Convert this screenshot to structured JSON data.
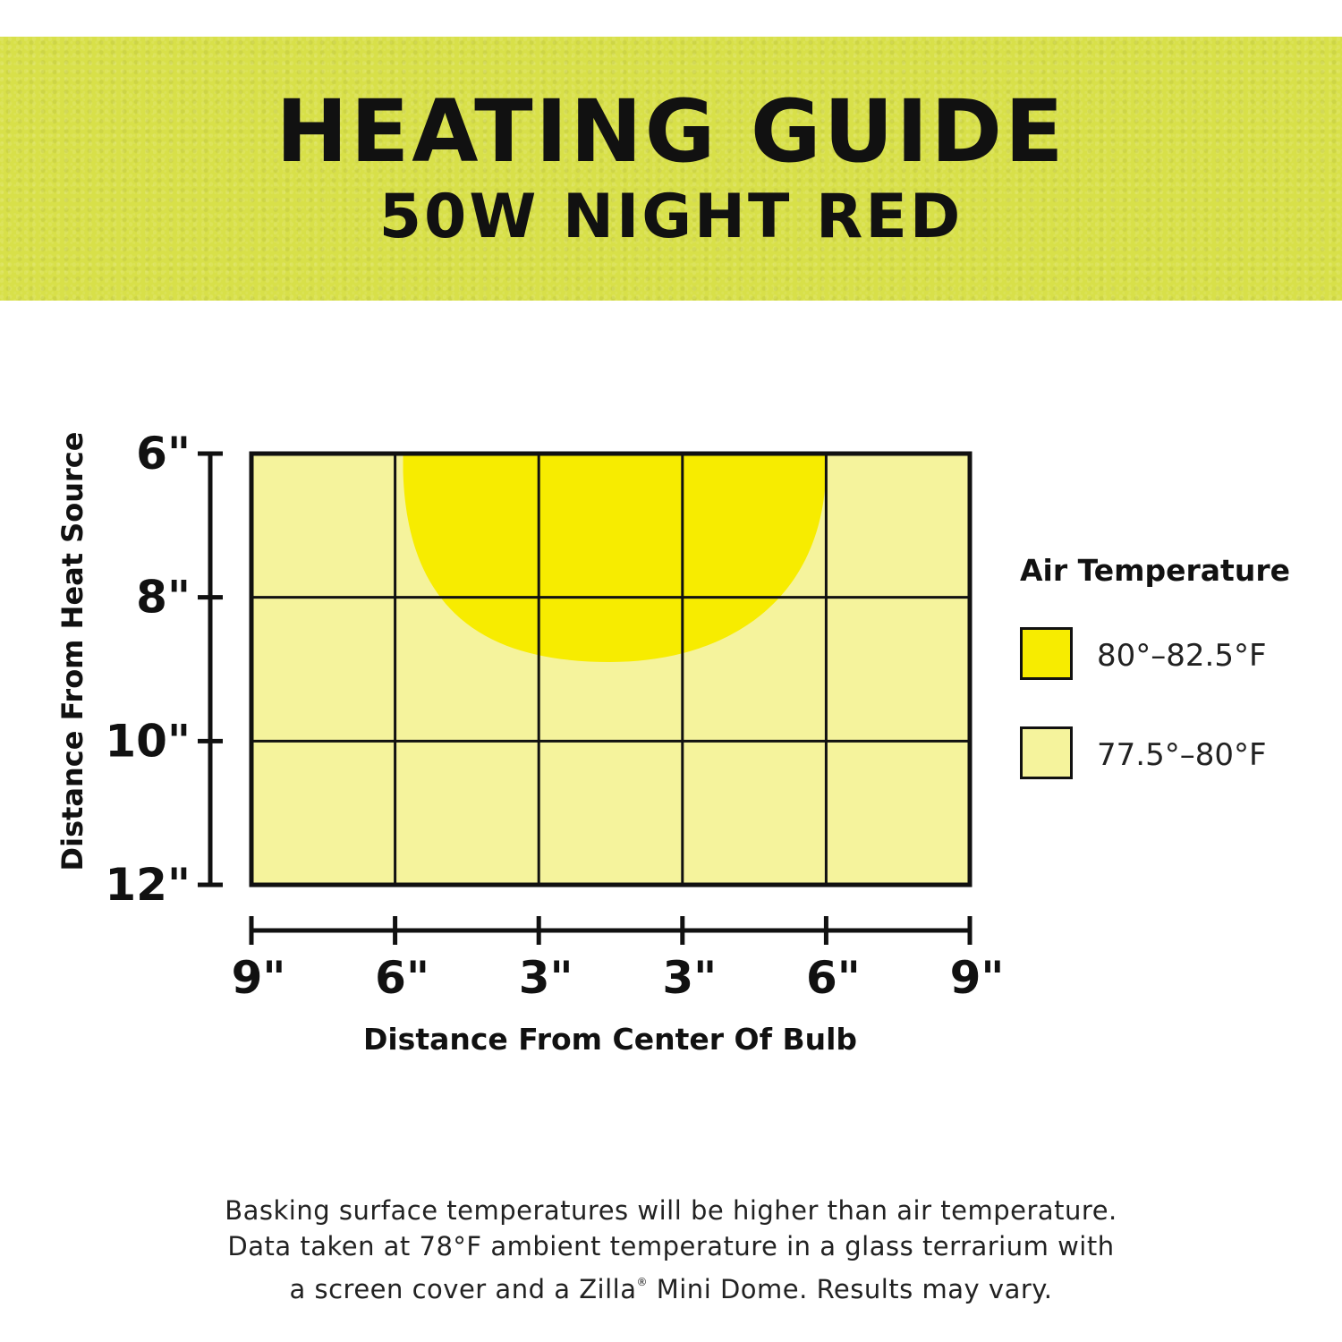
{
  "header": {
    "title": "HEATING GUIDE",
    "subtitle": "50W NIGHT RED",
    "banner_color": "#d8e049"
  },
  "chart_data": {
    "type": "heatmap",
    "ylabel": "Distance From Heat Source",
    "xlabel": "Distance From Center Of Bulb",
    "y_ticks": [
      "6\"",
      "8\"",
      "10\"",
      "12\""
    ],
    "x_ticks": [
      "9\"",
      "6\"",
      "3\"",
      "3\"",
      "6\"",
      "9\""
    ],
    "y_range_inches": [
      6,
      12
    ],
    "x_range_inches": [
      -9,
      9
    ],
    "grid": true,
    "legend": {
      "title": "Air Temperature",
      "placement": "right",
      "entries": [
        {
          "label": "80°–82.5°F",
          "color": "#f7ec00"
        },
        {
          "label": "77.5°–80°F",
          "color": "#f5f39c"
        }
      ]
    },
    "zones": [
      {
        "range": "80°–82.5°F",
        "color": "#f7ec00",
        "shape": "half-ellipse hanging from the 6\" line",
        "x_extent_inches": [
          -5.2,
          5.4
        ],
        "center_x_inches": 0,
        "bottom_y_inches": 8.9
      },
      {
        "range": "77.5°–80°F",
        "color": "#f5f39c",
        "shape": "rest of the grid"
      }
    ]
  },
  "footnote": {
    "line1": "Basking surface temperatures will be higher than air temperature.",
    "line2": "Data taken at 78°F ambient temperature in a glass terrarium with",
    "line3_pre": "a screen cover and a Zilla",
    "line3_reg": "®",
    "line3_post": " Mini Dome. Results may vary."
  }
}
